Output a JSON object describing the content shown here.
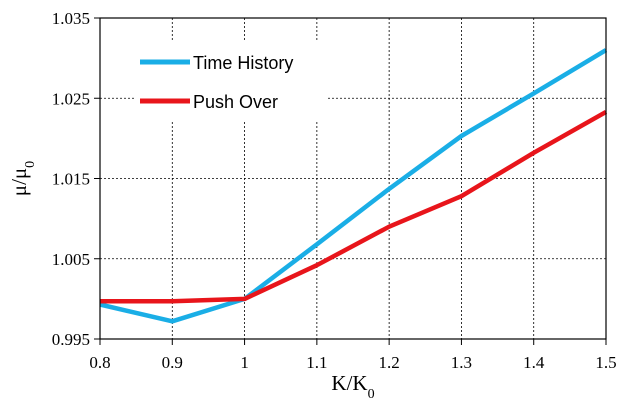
{
  "chart_data": {
    "type": "line",
    "title": "",
    "xlabel": {
      "main": "K/K",
      "sub": "0"
    },
    "ylabel": {
      "main": "μ/μ",
      "sub": "0"
    },
    "x": [
      0.8,
      0.9,
      1.0,
      1.1,
      1.2,
      1.3,
      1.4,
      1.5
    ],
    "xlim": [
      0.8,
      1.5
    ],
    "ylim": [
      0.995,
      1.035
    ],
    "xticks": [
      "0.8",
      "0.9",
      "1",
      "1.1",
      "1.2",
      "1.3",
      "1.4",
      "1.5"
    ],
    "yticks": [
      "0.995",
      "1.005",
      "1.015",
      "1.025",
      "1.035"
    ],
    "grid": true,
    "legend_position": "top-left",
    "series": [
      {
        "name": "Time History",
        "color": "#1aaee6",
        "values": [
          0.9993,
          0.9972,
          1.0,
          1.0068,
          1.0137,
          1.0203,
          1.0256,
          1.031
        ]
      },
      {
        "name": "Push Over",
        "color": "#e8151b",
        "values": [
          0.9997,
          0.9997,
          1.0,
          1.0042,
          1.009,
          1.0128,
          1.0182,
          1.0233
        ]
      }
    ]
  }
}
